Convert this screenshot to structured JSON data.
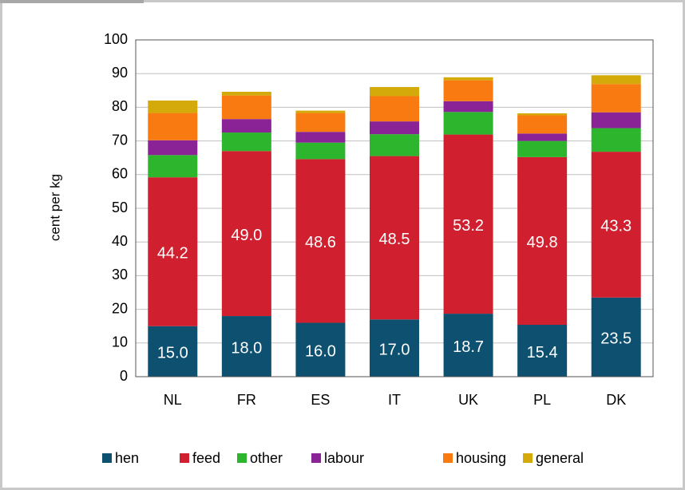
{
  "chart_data": {
    "type": "stacked_bar",
    "ylabel": "cent per kg",
    "categories": [
      "NL",
      "FR",
      "ES",
      "IT",
      "UK",
      "PL",
      "DK"
    ],
    "series": [
      {
        "name": "hen",
        "color": "#0d5070",
        "values": [
          15.0,
          18.0,
          16.0,
          17.0,
          18.7,
          15.4,
          23.5
        ],
        "value_labels": [
          "15.0",
          "18.0",
          "16.0",
          "17.0",
          "18.7",
          "15.4",
          "23.5"
        ]
      },
      {
        "name": "feed",
        "color": "#d0202f",
        "values": [
          44.2,
          49.0,
          48.6,
          48.5,
          53.2,
          49.8,
          43.3
        ],
        "value_labels": [
          "44.2",
          "49.0",
          "48.6",
          "48.5",
          "53.2",
          "49.8",
          "43.3"
        ]
      },
      {
        "name": "other",
        "color": "#2db52e",
        "values": [
          6.6,
          5.5,
          4.9,
          6.5,
          6.7,
          4.8,
          7.0
        ]
      },
      {
        "name": "labour",
        "color": "#8a2395",
        "values": [
          4.4,
          4.0,
          3.2,
          3.8,
          3.2,
          2.2,
          4.7
        ]
      },
      {
        "name": "housing",
        "color": "#f97a10",
        "values": [
          8.1,
          7.0,
          5.6,
          7.5,
          6.2,
          5.4,
          8.4
        ]
      },
      {
        "name": "general",
        "color": "#d4aa0a",
        "values": [
          3.7,
          1.1,
          0.7,
          2.7,
          0.9,
          0.6,
          2.6
        ]
      }
    ],
    "ylim": [
      0,
      100
    ],
    "yticks": [
      0,
      10,
      20,
      30,
      40,
      50,
      60,
      70,
      80,
      90,
      100
    ],
    "grid": true,
    "legend": "bottom"
  }
}
